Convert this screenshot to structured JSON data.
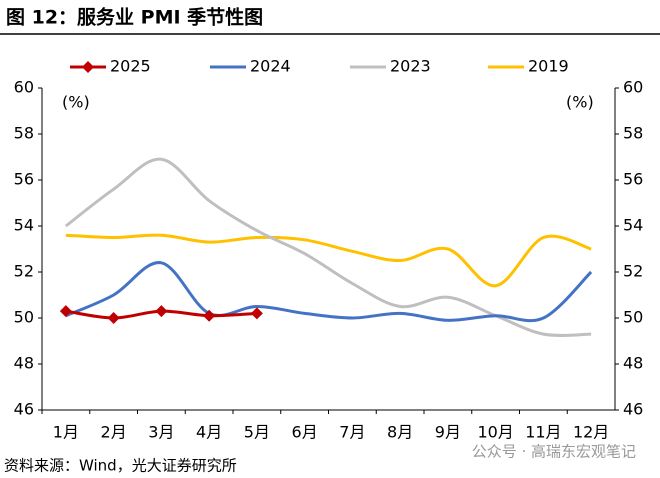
{
  "chart_data": {
    "type": "line",
    "title": "图 12：服务业 PMI 季节性图",
    "source": "资料来源：Wind，光大证券研究所",
    "watermark": "公众号 · 高瑞东宏观笔记",
    "ylabel": "(%)",
    "y2label": "(%)",
    "categories": [
      "1月",
      "2月",
      "3月",
      "4月",
      "5月",
      "6月",
      "7月",
      "8月",
      "9月",
      "10月",
      "11月",
      "12月"
    ],
    "series": [
      {
        "name": "2025",
        "color": "#c00000",
        "marker": "diamond",
        "values": [
          50.3,
          50.0,
          50.3,
          50.1,
          50.2,
          null,
          null,
          null,
          null,
          null,
          null,
          null
        ]
      },
      {
        "name": "2024",
        "color": "#4472c4",
        "values": [
          50.1,
          51.0,
          52.4,
          50.2,
          50.5,
          50.2,
          50.0,
          50.2,
          49.9,
          50.1,
          50.0,
          52.0
        ]
      },
      {
        "name": "2023",
        "color": "#bfbfbf",
        "values": [
          54.0,
          55.6,
          56.9,
          55.1,
          53.8,
          52.8,
          51.5,
          50.5,
          50.9,
          50.1,
          49.3,
          49.3
        ]
      },
      {
        "name": "2019",
        "color": "#ffc000",
        "values": [
          53.6,
          53.5,
          53.6,
          53.3,
          53.5,
          53.4,
          52.9,
          52.5,
          53.0,
          51.4,
          53.5,
          53.0
        ]
      }
    ],
    "ylim": [
      46,
      60
    ],
    "yticks": [
      46,
      48,
      50,
      52,
      54,
      56,
      58,
      60
    ],
    "y2lim": [
      46,
      60
    ],
    "y2ticks": [
      46,
      48,
      50,
      52,
      54,
      56,
      58,
      60
    ],
    "legend": "top",
    "grid": false
  }
}
